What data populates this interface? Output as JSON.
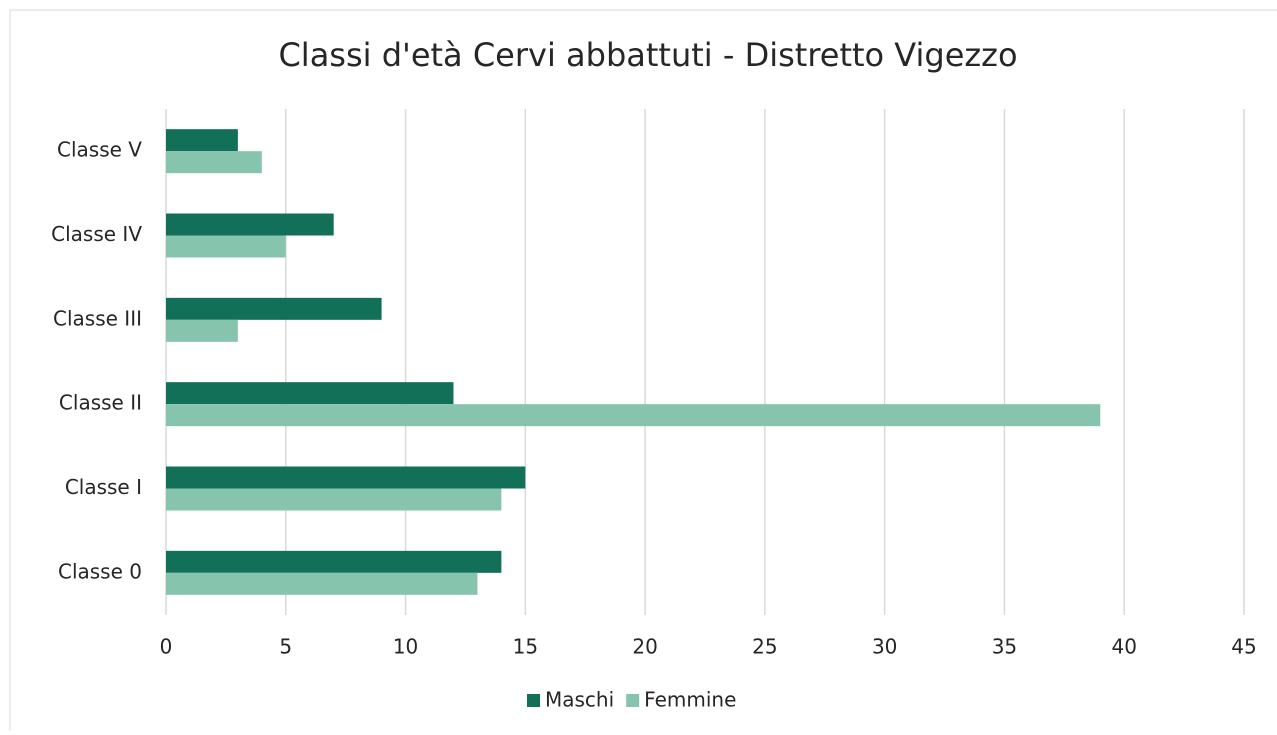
{
  "chart_data": {
    "type": "hbar",
    "title": "Classi d'età Cervi abbattuti - Distretto Vigezzo",
    "categories": [
      "Classe 0",
      "Classe I",
      "Classe II",
      "Classe III",
      "Classe IV",
      "Classe V"
    ],
    "series": [
      {
        "name": "Maschi",
        "color": "#137058",
        "values": [
          14,
          15,
          12,
          9,
          7,
          3
        ]
      },
      {
        "name": "Femmine",
        "color": "#87c4ae",
        "values": [
          13,
          14,
          39,
          3,
          5,
          4
        ]
      }
    ],
    "xlim": [
      0,
      45
    ],
    "xticks": [
      0,
      5,
      10,
      15,
      20,
      25,
      30,
      35,
      40,
      45
    ],
    "grid": true,
    "legend": "bottom"
  }
}
